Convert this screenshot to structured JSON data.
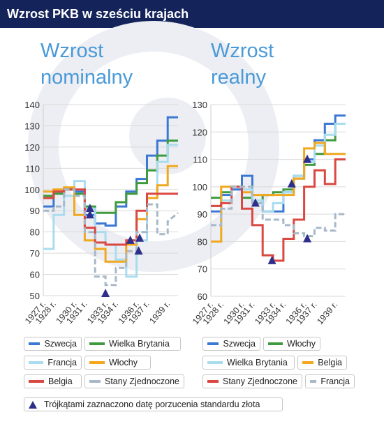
{
  "header": {
    "title": "Wzrost PKB w sześciu krajach"
  },
  "colors": {
    "szwecja": "#3b78d4",
    "wielka_brytania": "#3f9a3f",
    "francja": "#a9dcef",
    "wlochy": "#f0a81f",
    "belgia": "#d94841",
    "stany": "#a7b8c9",
    "title": "#4a9ad8",
    "marker": "#2d2f8a"
  },
  "chart_data": [
    {
      "type": "line",
      "title": "Wzrost nominalny",
      "ylim": [
        50,
        140
      ],
      "yticks": [
        50,
        60,
        70,
        80,
        90,
        100,
        110,
        120,
        130,
        140
      ],
      "xlim": [
        1927,
        1940
      ],
      "xticks": [
        1927,
        1928,
        1930,
        1931,
        1933,
        1934,
        1936,
        1937,
        1939
      ],
      "xtick_labels": [
        "1927 r.",
        "1928 r.",
        "1930 r.",
        "1931 r.",
        "1933 r.",
        "1934 r.",
        "1936 r.",
        "1937 r.",
        "1939 r."
      ],
      "grid": true,
      "legend_position": "bottom",
      "series": [
        {
          "name": "Szwecja",
          "color_key": "szwecja",
          "dashed": false,
          "x": [
            1927,
            1928,
            1928,
            1929,
            1929,
            1930,
            1930,
            1931,
            1931,
            1932,
            1932,
            1933,
            1933,
            1934,
            1934,
            1935,
            1935,
            1936,
            1936,
            1937,
            1937,
            1938,
            1938,
            1939,
            1939,
            1940
          ],
          "y": [
            92,
            92,
            99,
            99,
            100,
            100,
            99,
            99,
            88,
            88,
            84,
            84,
            83,
            83,
            92,
            92,
            99,
            99,
            105,
            105,
            116,
            116,
            123,
            123,
            134,
            134
          ]
        },
        {
          "name": "Wielka Brytania",
          "color_key": "wielka_brytania",
          "dashed": false,
          "x": [
            1927,
            1928,
            1928,
            1929,
            1929,
            1930,
            1930,
            1931,
            1931,
            1932,
            1932,
            1933,
            1933,
            1934,
            1934,
            1935,
            1935,
            1936,
            1936,
            1937,
            1937,
            1938,
            1938,
            1939,
            1939,
            1940
          ],
          "y": [
            97,
            97,
            98,
            98,
            100,
            100,
            98,
            98,
            92,
            92,
            89,
            89,
            89,
            89,
            94,
            94,
            98,
            98,
            103,
            103,
            109,
            109,
            116,
            116,
            123,
            123
          ]
        },
        {
          "name": "Francja",
          "color_key": "francja",
          "dashed": false,
          "x": [
            1927,
            1928,
            1928,
            1929,
            1929,
            1930,
            1930,
            1931,
            1931,
            1932,
            1932,
            1933,
            1933,
            1934,
            1934,
            1935,
            1935,
            1936,
            1936,
            1937,
            1937,
            1938,
            1938,
            1939,
            1939,
            1940
          ],
          "y": [
            72,
            72,
            88,
            88,
            97,
            97,
            104,
            104,
            91,
            91,
            80,
            80,
            74,
            74,
            67,
            67,
            59,
            59,
            76,
            76,
            98,
            98,
            113,
            113,
            121,
            121
          ]
        },
        {
          "name": "Włochy",
          "color_key": "wlochy",
          "dashed": false,
          "x": [
            1927,
            1928,
            1928,
            1929,
            1929,
            1930,
            1930,
            1931,
            1931,
            1932,
            1932,
            1933,
            1933,
            1934,
            1934,
            1935,
            1935,
            1936,
            1936,
            1937,
            1937,
            1938,
            1938,
            1939,
            1939,
            1940
          ],
          "y": [
            99,
            99,
            100,
            100,
            101,
            101,
            88,
            88,
            76,
            76,
            72,
            72,
            66,
            66,
            66,
            66,
            74,
            74,
            86,
            86,
            96,
            96,
            102,
            102,
            111,
            111
          ]
        },
        {
          "name": "Belgia",
          "color_key": "belgia",
          "dashed": false,
          "x": [
            1927,
            1928,
            1928,
            1929,
            1929,
            1930,
            1930,
            1931,
            1931,
            1932,
            1932,
            1933,
            1933,
            1934,
            1934,
            1935,
            1935,
            1936,
            1936,
            1937,
            1937,
            1938,
            1938,
            1939,
            1939,
            1940
          ],
          "y": [
            96,
            96,
            99,
            99,
            100,
            100,
            100,
            100,
            82,
            82,
            75,
            75,
            74,
            74,
            74,
            74,
            76,
            76,
            90,
            90,
            98,
            98,
            98,
            98,
            98,
            98
          ]
        },
        {
          "name": "Stany Zjednoczone",
          "color_key": "stany",
          "dashed": true,
          "x": [
            1927,
            1928,
            1928,
            1929,
            1929,
            1930,
            1930,
            1931,
            1931,
            1932,
            1932,
            1933,
            1933,
            1934,
            1934,
            1935,
            1935,
            1936,
            1936,
            1937,
            1937,
            1938,
            1938,
            1939,
            1939,
            1940
          ],
          "y": [
            90,
            90,
            92,
            92,
            100,
            100,
            97,
            97,
            80,
            80,
            59,
            59,
            55,
            55,
            63,
            63,
            71,
            71,
            80,
            80,
            93,
            93,
            79,
            79,
            85,
            89
          ]
        }
      ],
      "markers": [
        {
          "x": 1931.5,
          "y": 91
        },
        {
          "x": 1931.5,
          "y": 88
        },
        {
          "x": 1933.0,
          "y": 51
        },
        {
          "x": 1935.4,
          "y": 76
        },
        {
          "x": 1936.3,
          "y": 77
        },
        {
          "x": 1936.2,
          "y": 71
        }
      ],
      "legend": [
        {
          "label": "Szwecja",
          "color_key": "szwecja",
          "dashed": false
        },
        {
          "label": "Wielka Brytania",
          "color_key": "wielka_brytania",
          "dashed": false
        },
        {
          "label": "Francja",
          "color_key": "francja",
          "dashed": false
        },
        {
          "label": "Włochy",
          "color_key": "wlochy",
          "dashed": false
        },
        {
          "label": "Belgia",
          "color_key": "belgia",
          "dashed": false
        },
        {
          "label": "Stany Zjednoczone",
          "color_key": "stany",
          "dashed": true
        }
      ]
    },
    {
      "type": "line",
      "title": "Wzrost realny",
      "ylim": [
        60,
        130
      ],
      "yticks": [
        60,
        70,
        80,
        90,
        100,
        110,
        120,
        130
      ],
      "xlim": [
        1927,
        1940
      ],
      "xticks": [
        1927,
        1928,
        1930,
        1931,
        1933,
        1934,
        1936,
        1937,
        1939
      ],
      "xtick_labels": [
        "1927 r.",
        "1928 r.",
        "1930 r.",
        "1931 r.",
        "1933 r.",
        "1934 r.",
        "1936 r.",
        "1937 r.",
        "1939 r."
      ],
      "grid": true,
      "legend_position": "bottom",
      "series": [
        {
          "name": "Szwecja",
          "color_key": "szwecja",
          "dashed": false,
          "x": [
            1927,
            1928,
            1928,
            1929,
            1929,
            1930,
            1930,
            1931,
            1931,
            1932,
            1932,
            1933,
            1933,
            1934,
            1934,
            1935,
            1935,
            1936,
            1936,
            1937,
            1937,
            1938,
            1938,
            1939,
            1939,
            1940
          ],
          "y": [
            91,
            91,
            97,
            97,
            99,
            99,
            104,
            104,
            95,
            95,
            91,
            91,
            91,
            91,
            98,
            98,
            104,
            104,
            110,
            110,
            117,
            117,
            123,
            123,
            126,
            126
          ]
        },
        {
          "name": "Włochy",
          "color_key": "wielka_brytania",
          "dashed": false,
          "x": [
            1927,
            1928,
            1928,
            1929,
            1929,
            1930,
            1930,
            1931,
            1931,
            1932,
            1932,
            1933,
            1933,
            1934,
            1934,
            1935,
            1935,
            1936,
            1936,
            1937,
            1937,
            1938,
            1938,
            1939,
            1939,
            1940
          ],
          "y": [
            96,
            96,
            98,
            98,
            100,
            100,
            96,
            96,
            95,
            95,
            97,
            97,
            98,
            98,
            99,
            99,
            103,
            103,
            108,
            108,
            112,
            112,
            117,
            117,
            123,
            123
          ]
        },
        {
          "name": "Wielka Brytania",
          "color_key": "francja",
          "dashed": false,
          "x": [
            1927,
            1928,
            1928,
            1929,
            1929,
            1930,
            1930,
            1931,
            1931,
            1932,
            1932,
            1933,
            1933,
            1934,
            1934,
            1935,
            1935,
            1936,
            1936,
            1937,
            1937,
            1938,
            1938,
            1939,
            1939,
            1940
          ],
          "y": [
            93,
            93,
            95,
            95,
            100,
            100,
            99,
            99,
            95,
            95,
            91,
            91,
            94,
            94,
            98,
            98,
            104,
            104,
            109,
            109,
            115,
            115,
            119,
            119,
            123,
            123
          ]
        },
        {
          "name": "Belgia",
          "color_key": "wlochy",
          "dashed": false,
          "x": [
            1927,
            1928,
            1928,
            1929,
            1929,
            1930,
            1930,
            1931,
            1931,
            1932,
            1932,
            1933,
            1933,
            1934,
            1934,
            1935,
            1935,
            1936,
            1936,
            1937,
            1937,
            1938,
            1938,
            1939,
            1939,
            1940
          ],
          "y": [
            80,
            80,
            100,
            100,
            100,
            100,
            98,
            98,
            97,
            97,
            97,
            97,
            97,
            97,
            97,
            97,
            103,
            103,
            114,
            114,
            116,
            116,
            112,
            112,
            112,
            112
          ]
        },
        {
          "name": "Stany Zjednoczone",
          "color_key": "belgia",
          "dashed": false,
          "x": [
            1927,
            1928,
            1928,
            1929,
            1929,
            1930,
            1930,
            1931,
            1931,
            1932,
            1932,
            1933,
            1933,
            1934,
            1934,
            1935,
            1935,
            1936,
            1936,
            1937,
            1937,
            1938,
            1938,
            1939,
            1939,
            1940
          ],
          "y": [
            93,
            93,
            94,
            94,
            100,
            100,
            92,
            92,
            86,
            86,
            75,
            75,
            73,
            73,
            81,
            81,
            88,
            88,
            100,
            100,
            106,
            106,
            101,
            101,
            110,
            110
          ]
        },
        {
          "name": "Francja",
          "color_key": "stany",
          "dashed": true,
          "x": [
            1927,
            1928,
            1928,
            1929,
            1929,
            1930,
            1930,
            1931,
            1931,
            1932,
            1932,
            1933,
            1933,
            1934,
            1934,
            1935,
            1935,
            1936,
            1936,
            1937,
            1937,
            1938,
            1938,
            1939,
            1939,
            1940
          ],
          "y": [
            86,
            86,
            92,
            92,
            100,
            100,
            100,
            100,
            94,
            94,
            88,
            88,
            88,
            88,
            86,
            86,
            83,
            83,
            82,
            82,
            85,
            85,
            84,
            84,
            90,
            90
          ]
        }
      ],
      "markers": [
        {
          "x": 1931.3,
          "y": 94
        },
        {
          "x": 1932.9,
          "y": 73
        },
        {
          "x": 1934.8,
          "y": 101
        },
        {
          "x": 1936.3,
          "y": 110
        },
        {
          "x": 1936.3,
          "y": 81
        }
      ],
      "legend": [
        {
          "label": "Szwecja",
          "color_key": "szwecja",
          "dashed": false
        },
        {
          "label": "Włochy",
          "color_key": "wielka_brytania",
          "dashed": false
        },
        {
          "label": "Wielka Brytania",
          "color_key": "francja",
          "dashed": false
        },
        {
          "label": "Belgia",
          "color_key": "wlochy",
          "dashed": false
        },
        {
          "label": "Stany Zjednoczone",
          "color_key": "belgia",
          "dashed": false
        },
        {
          "label": "Francja",
          "color_key": "stany",
          "dashed": true
        }
      ]
    }
  ],
  "footnote": {
    "label": "Trójkątami zaznaczono datę porzucenia standardu złota"
  }
}
